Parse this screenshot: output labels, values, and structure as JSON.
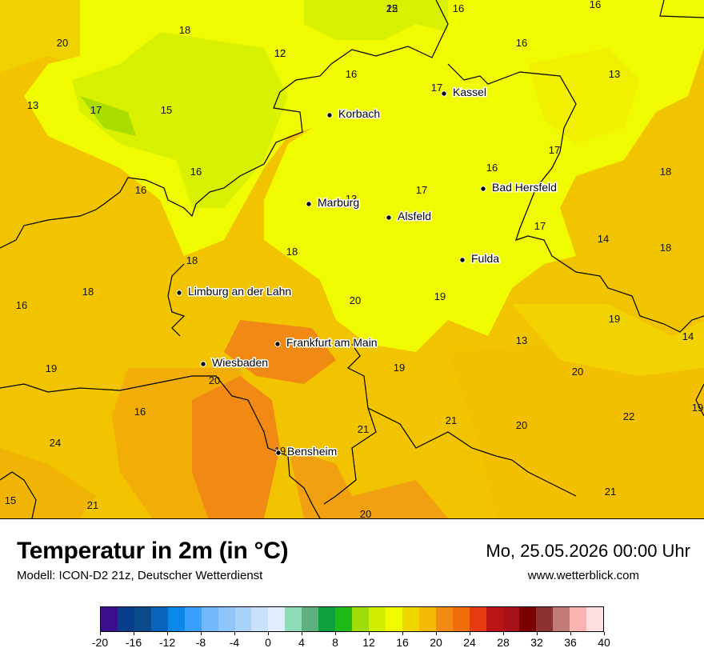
{
  "title": "Temperatur in 2m (in °C)",
  "subtitle": "Modell: ICON-D2 21z, Deutscher Wetterdienst",
  "datetime": "Mo, 25.05.2026 00:00 Uhr",
  "website": "www.wetterblick.com",
  "cities": [
    {
      "name": "Kassel"
    },
    {
      "name": "Korbach"
    },
    {
      "name": "Marburg"
    },
    {
      "name": "Alsfeld"
    },
    {
      "name": "Bad Hersfeld"
    },
    {
      "name": "Fulda"
    },
    {
      "name": "Limburg an der Lahn"
    },
    {
      "name": "Frankfurt am Main"
    },
    {
      "name": "Wiesbaden"
    },
    {
      "name": "Bensheim"
    }
  ],
  "temperature_labels": [
    "15",
    "16",
    "16",
    "12",
    "20",
    "18",
    "12",
    "16",
    "16",
    "13",
    "17",
    "13",
    "17",
    "15",
    "17",
    "16",
    "16",
    "18",
    "16",
    "13",
    "17",
    "17",
    "18",
    "14",
    "18",
    "18",
    "19",
    "18",
    "20",
    "16",
    "19",
    "14",
    "13",
    "19",
    "19",
    "20",
    "20",
    "22",
    "16",
    "21",
    "19",
    "20",
    "21",
    "19",
    "24",
    "15",
    "21",
    "21",
    "20",
    "22"
  ],
  "legend": {
    "colors": [
      "#3a0f8c",
      "#0a3d8a",
      "#0c4a8e",
      "#0a64bd",
      "#0a87e8",
      "#3aa0ff",
      "#73b7fb",
      "#8ec5f8",
      "#a9d2f9",
      "#c8e2fb",
      "#dfedfd",
      "#8fdcb8",
      "#5fb07f",
      "#0ea03c",
      "#1fbc18",
      "#9fdc08",
      "#d1ef00",
      "#f0fb00",
      "#f0d600",
      "#f2bb06",
      "#f28a14",
      "#f06f0c",
      "#e83a10",
      "#bb1414",
      "#a8101a",
      "#7a0000",
      "#8c3230",
      "#c07a78",
      "#fbb3b0",
      "#ffdfdf"
    ],
    "tick_labels": [
      "-20",
      "-16",
      "-12",
      "-8",
      "-4",
      "0",
      "4",
      "8",
      "12",
      "16",
      "20",
      "24",
      "28",
      "32",
      "36",
      "40"
    ]
  }
}
